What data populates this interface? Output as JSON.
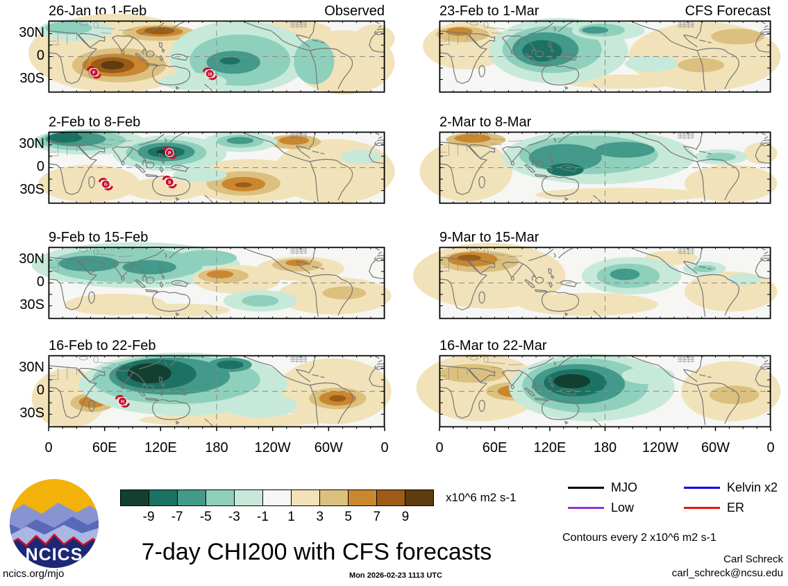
{
  "axes": {
    "y_labels": [
      "30N",
      "0",
      "30S"
    ],
    "x_labels": [
      "0",
      "60E",
      "120E",
      "180",
      "120W",
      "60W",
      "0"
    ]
  },
  "panels": [
    {
      "title": "26-Jan to 1-Feb",
      "tag": "Observed",
      "col": 0,
      "row": 0,
      "blobs": [
        [
          1,
          20,
          45,
          26,
          55
        ],
        [
          1,
          73,
          13,
          11,
          13
        ],
        [
          1,
          88,
          58,
          15,
          45
        ],
        [
          1,
          97,
          25,
          6,
          20
        ],
        [
          2,
          33,
          17,
          11,
          11
        ],
        [
          3,
          33,
          15,
          7,
          7
        ],
        [
          4,
          33,
          14,
          4.5,
          5
        ],
        [
          2,
          21,
          62,
          14,
          24
        ],
        [
          3,
          20,
          62,
          10,
          16
        ],
        [
          4,
          19,
          62,
          6.5,
          11
        ],
        [
          5,
          19,
          62,
          3.5,
          6
        ],
        [
          -1,
          57,
          50,
          21,
          50
        ],
        [
          -2,
          57,
          55,
          15,
          36
        ],
        [
          -3,
          55,
          58,
          8,
          16
        ],
        [
          -4,
          54,
          56,
          3,
          5
        ],
        [
          -2,
          79,
          57,
          6,
          32
        ],
        [
          -1,
          8,
          13,
          11,
          15
        ],
        [
          -2,
          6,
          10,
          7,
          9
        ],
        [
          -1,
          43,
          85,
          10,
          12
        ]
      ],
      "cyclones": [
        [
          "F",
          13.5,
          72
        ],
        [
          "18",
          48,
          74
        ]
      ]
    },
    {
      "title": "23-Feb to 1-Mar",
      "tag": "CFS Forecast",
      "col": 1,
      "row": 0,
      "blobs": [
        [
          1,
          8,
          35,
          13,
          33
        ],
        [
          2,
          7,
          19,
          8,
          11
        ],
        [
          3,
          6,
          15,
          4,
          6
        ],
        [
          1,
          80,
          50,
          23,
          48
        ],
        [
          2,
          90,
          22,
          8,
          11
        ],
        [
          2,
          79,
          62,
          7,
          10
        ],
        [
          1,
          55,
          85,
          18,
          10
        ],
        [
          -1,
          36,
          42,
          21,
          46
        ],
        [
          -2,
          34,
          40,
          15,
          33
        ],
        [
          -3,
          32,
          40,
          10,
          24
        ],
        [
          -4,
          31,
          42,
          6,
          15
        ],
        [
          -1,
          51,
          14,
          11,
          13
        ],
        [
          -2,
          49,
          13,
          7,
          9
        ],
        [
          -3,
          47,
          13,
          4,
          5
        ],
        [
          -1,
          64,
          60,
          8,
          11
        ]
      ],
      "cyclones": []
    },
    {
      "title": "2-Feb to 8-Feb",
      "tag": "",
      "col": 0,
      "row": 1,
      "blobs": [
        [
          1,
          12,
          72,
          15,
          26
        ],
        [
          1,
          85,
          55,
          18,
          45
        ],
        [
          1,
          35,
          80,
          12,
          16
        ],
        [
          1,
          60,
          68,
          20,
          30
        ],
        [
          2,
          58,
          72,
          11,
          17
        ],
        [
          3,
          58,
          73,
          6.5,
          10
        ],
        [
          4,
          58,
          74,
          2.5,
          3.5
        ],
        [
          2,
          73,
          14,
          8,
          10
        ],
        [
          3,
          73,
          12,
          4.5,
          6
        ],
        [
          -1,
          12,
          14,
          17,
          18
        ],
        [
          -2,
          10,
          12,
          13,
          14
        ],
        [
          -3,
          8,
          10,
          9,
          10
        ],
        [
          -4,
          5,
          8,
          5,
          7
        ],
        [
          -1,
          36,
          30,
          17,
          25
        ],
        [
          -2,
          35,
          29,
          12,
          18
        ],
        [
          -3,
          35,
          28,
          8.5,
          13
        ],
        [
          -4,
          35,
          28,
          5.5,
          8
        ],
        [
          -5,
          35,
          28,
          2.8,
          4
        ],
        [
          -1,
          57,
          14,
          11,
          14
        ],
        [
          -2,
          57,
          13,
          7,
          9
        ],
        [
          -3,
          57,
          12,
          4,
          5
        ],
        [
          -1,
          93,
          35,
          6,
          10
        ],
        [
          -1,
          45,
          60,
          8,
          10
        ]
      ],
      "cyclones": [
        [
          "P",
          36,
          29
        ],
        [
          "G",
          17,
          73
        ],
        [
          "S",
          36,
          70
        ]
      ]
    },
    {
      "title": "2-Mar to 8-Mar",
      "tag": "",
      "col": 1,
      "row": 1,
      "blobs": [
        [
          1,
          8,
          55,
          14,
          42
        ],
        [
          2,
          11,
          11,
          9,
          10
        ],
        [
          3,
          10,
          9,
          5.5,
          6
        ],
        [
          1,
          88,
          72,
          14,
          26
        ],
        [
          1,
          55,
          88,
          26,
          10
        ],
        [
          1,
          97,
          30,
          5,
          15
        ],
        [
          -1,
          48,
          35,
          29,
          38
        ],
        [
          -2,
          45,
          32,
          21,
          27
        ],
        [
          -3,
          38,
          36,
          11,
          19
        ],
        [
          -3,
          56,
          25,
          9,
          11
        ],
        [
          -4,
          38,
          53,
          5.5,
          9
        ],
        [
          -1,
          85,
          35,
          8,
          11
        ],
        [
          -2,
          85,
          35,
          4.5,
          6
        ]
      ],
      "cyclones": []
    },
    {
      "title": "9-Feb to 15-Feb",
      "tag": "",
      "col": 0,
      "row": 2,
      "blobs": [
        [
          -1,
          26,
          25,
          31,
          32
        ],
        [
          -2,
          23,
          25,
          23,
          24
        ],
        [
          -3,
          12,
          23,
          9,
          11
        ],
        [
          -3,
          30,
          28,
          8,
          10
        ],
        [
          -2,
          47,
          15,
          9,
          11
        ],
        [
          1,
          56,
          45,
          13,
          20
        ],
        [
          2,
          52,
          40,
          7.5,
          10
        ],
        [
          3,
          51,
          38,
          4,
          5.5
        ],
        [
          1,
          75,
          30,
          13,
          17
        ],
        [
          2,
          74,
          25,
          7.5,
          9
        ],
        [
          3,
          74,
          22,
          3.5,
          4.5
        ],
        [
          1,
          85,
          68,
          17,
          26
        ],
        [
          2,
          88,
          64,
          6.5,
          9
        ],
        [
          -1,
          63,
          75,
          11,
          15
        ],
        [
          -2,
          63,
          75,
          5.5,
          8
        ],
        [
          1,
          20,
          80,
          15,
          15
        ],
        [
          1,
          40,
          88,
          14,
          9
        ]
      ],
      "cyclones": []
    },
    {
      "title": "9-Mar to 15-Mar",
      "tag": "",
      "col": 1,
      "row": 2,
      "blobs": [
        [
          1,
          15,
          40,
          23,
          46
        ],
        [
          2,
          12,
          20,
          12,
          15
        ],
        [
          3,
          10,
          17,
          7.5,
          10
        ],
        [
          4,
          9,
          15,
          3.5,
          4.5
        ],
        [
          1,
          45,
          80,
          21,
          16
        ],
        [
          1,
          88,
          62,
          14,
          28
        ],
        [
          1,
          70,
          15,
          8,
          10
        ],
        [
          -1,
          58,
          40,
          15,
          26
        ],
        [
          -2,
          57,
          40,
          9.5,
          17
        ],
        [
          -3,
          56,
          38,
          4.5,
          8
        ],
        [
          -1,
          80,
          30,
          6.5,
          10
        ],
        [
          -2,
          80,
          30,
          3.5,
          5
        ],
        [
          -1,
          92,
          45,
          5,
          8
        ]
      ],
      "cyclones": []
    },
    {
      "title": "16-Feb to 22-Feb",
      "tag": "",
      "col": 0,
      "row": 3,
      "blobs": [
        [
          1,
          6,
          60,
          11,
          42
        ],
        [
          1,
          85,
          50,
          17,
          46
        ],
        [
          1,
          55,
          90,
          28,
          10
        ],
        [
          2,
          13,
          66,
          6.5,
          13
        ],
        [
          3,
          13,
          65,
          4,
          8
        ],
        [
          2,
          86,
          60,
          8.5,
          15
        ],
        [
          3,
          86,
          60,
          5.5,
          10
        ],
        [
          4,
          86,
          60,
          2.5,
          4.5
        ],
        [
          -1,
          40,
          40,
          31,
          44
        ],
        [
          -2,
          38,
          34,
          25,
          34
        ],
        [
          -3,
          36,
          29,
          18,
          26
        ],
        [
          -4,
          32,
          26,
          12,
          21
        ],
        [
          -5,
          30,
          25,
          6.5,
          14
        ],
        [
          -3,
          54,
          13,
          6.5,
          10
        ],
        [
          -4,
          54,
          13,
          4,
          6
        ],
        [
          -1,
          63,
          70,
          11,
          17
        ]
      ],
      "cyclones": [
        [
          "H",
          22,
          64
        ]
      ]
    },
    {
      "title": "16-Mar to 22-Mar",
      "tag": "",
      "col": 1,
      "row": 3,
      "blobs": [
        [
          1,
          12,
          45,
          19,
          47
        ],
        [
          2,
          10,
          25,
          10,
          13
        ],
        [
          2,
          23,
          50,
          9,
          13
        ],
        [
          3,
          23,
          50,
          5.5,
          8.5
        ],
        [
          1,
          88,
          50,
          15,
          42
        ],
        [
          2,
          89,
          55,
          7.5,
          13
        ],
        [
          -1,
          46,
          45,
          25,
          47
        ],
        [
          -2,
          44,
          42,
          19,
          38
        ],
        [
          -3,
          42,
          40,
          14,
          28
        ],
        [
          -4,
          41,
          38,
          9.5,
          19
        ],
        [
          -5,
          40,
          36,
          5.5,
          10
        ],
        [
          -1,
          63,
          28,
          8,
          12
        ]
      ],
      "cyclones": []
    }
  ],
  "colorbar": {
    "colors": [
      "#133f31",
      "#1b7263",
      "#43998a",
      "#8ed0bc",
      "#c7e9da",
      "#f6f6f4",
      "#f1e2b9",
      "#dcc07f",
      "#c9872f",
      "#9c5c17",
      "#5d3c10"
    ],
    "tick_labels": [
      "-9",
      "-7",
      "-5",
      "-3",
      "-1",
      "1",
      "3",
      "5",
      "7",
      "9"
    ],
    "units_label": "x10^6 m2 s-1"
  },
  "legend": {
    "items": [
      {
        "label": "MJO",
        "color": "#000000"
      },
      {
        "label": "Low",
        "color": "#9b30d0"
      },
      {
        "label": "Kelvin x2",
        "color": "#0000ee"
      },
      {
        "label": "ER",
        "color": "#ee1111"
      }
    ]
  },
  "footer": {
    "title": "7-day CHI200 with CFS forecasts",
    "contours_note": "Contours every 2 x10^6 m2 s-1",
    "author": "Carl Schreck",
    "email": "carl_schreck@ncsu.edu",
    "site": "ncics.org/mjo",
    "timestamp": "Mon 2026-02-23 1113 UTC",
    "logo_text": "NCICS"
  },
  "chart_data": {
    "type": "heatmap",
    "subtype": "filled-contour-anomaly-world-maps",
    "title": "7-day CHI200 with CFS forecasts",
    "units": "x10^6 m2 s-1",
    "contour_interval": "2 x10^6 m2 s-1",
    "x_tick_labels": [
      "0",
      "60E",
      "120E",
      "180",
      "120W",
      "60W",
      "0"
    ],
    "y_tick_labels": [
      "30N",
      "0",
      "30S"
    ],
    "color_scale": {
      "boundaries": [
        -9,
        -7,
        -5,
        -3,
        -1,
        1,
        3,
        5,
        7,
        9
      ],
      "colors": [
        "#133f31",
        "#1b7263",
        "#43998a",
        "#8ed0bc",
        "#c7e9da",
        "#f6f6f4",
        "#f1e2b9",
        "#dcc07f",
        "#c9872f",
        "#9c5c17",
        "#5d3c10"
      ],
      "negative_meaning": "negative CHI200 anomaly (teal)",
      "positive_meaning": "positive CHI200 anomaly (brown)"
    },
    "panel_grid": {
      "rows": 4,
      "cols": 2,
      "left_column": "Observed",
      "right_column": "CFS Forecast"
    },
    "panels": [
      {
        "title": "26-Jan to 1-Feb",
        "tag": "Observed",
        "main_features": "positive centers over west Indian Ocean and east Asia, negative center near 180 in west-central Pacific, cyclones F and 18"
      },
      {
        "title": "23-Feb to 1-Mar",
        "tag": "CFS Forecast",
        "main_features": "negative center over Maritime Continent, positive over north Africa and Americas"
      },
      {
        "title": "2-Feb to 8-Feb",
        "tag": "",
        "main_features": "strong negative center over Philippines with cyclone P, negative over Europe/north Africa, positive center south-central Pacific, cyclones G and S"
      },
      {
        "title": "2-Mar to 8-Mar",
        "tag": "",
        "main_features": "broad negative band over Indo-Pacific, positive northwest Africa and bottom-right"
      },
      {
        "title": "9-Feb to 15-Feb",
        "tag": "",
        "main_features": "negative band across Africa-Asia top, positive centers central Pacific and North America"
      },
      {
        "title": "9-Mar to 15-Mar",
        "tag": "",
        "main_features": "positive center northwest Africa, negative center central Pacific"
      },
      {
        "title": "16-Feb to 22-Feb",
        "tag": "",
        "main_features": "very strong negative center over India/southeast Asia, positive over Brazil and southern Africa, cyclone H"
      },
      {
        "title": "16-Mar to 22-Mar",
        "tag": "",
        "main_features": "very strong negative center over New Guinea/Maritime Continent, positive center Arabian Sea"
      }
    ]
  }
}
